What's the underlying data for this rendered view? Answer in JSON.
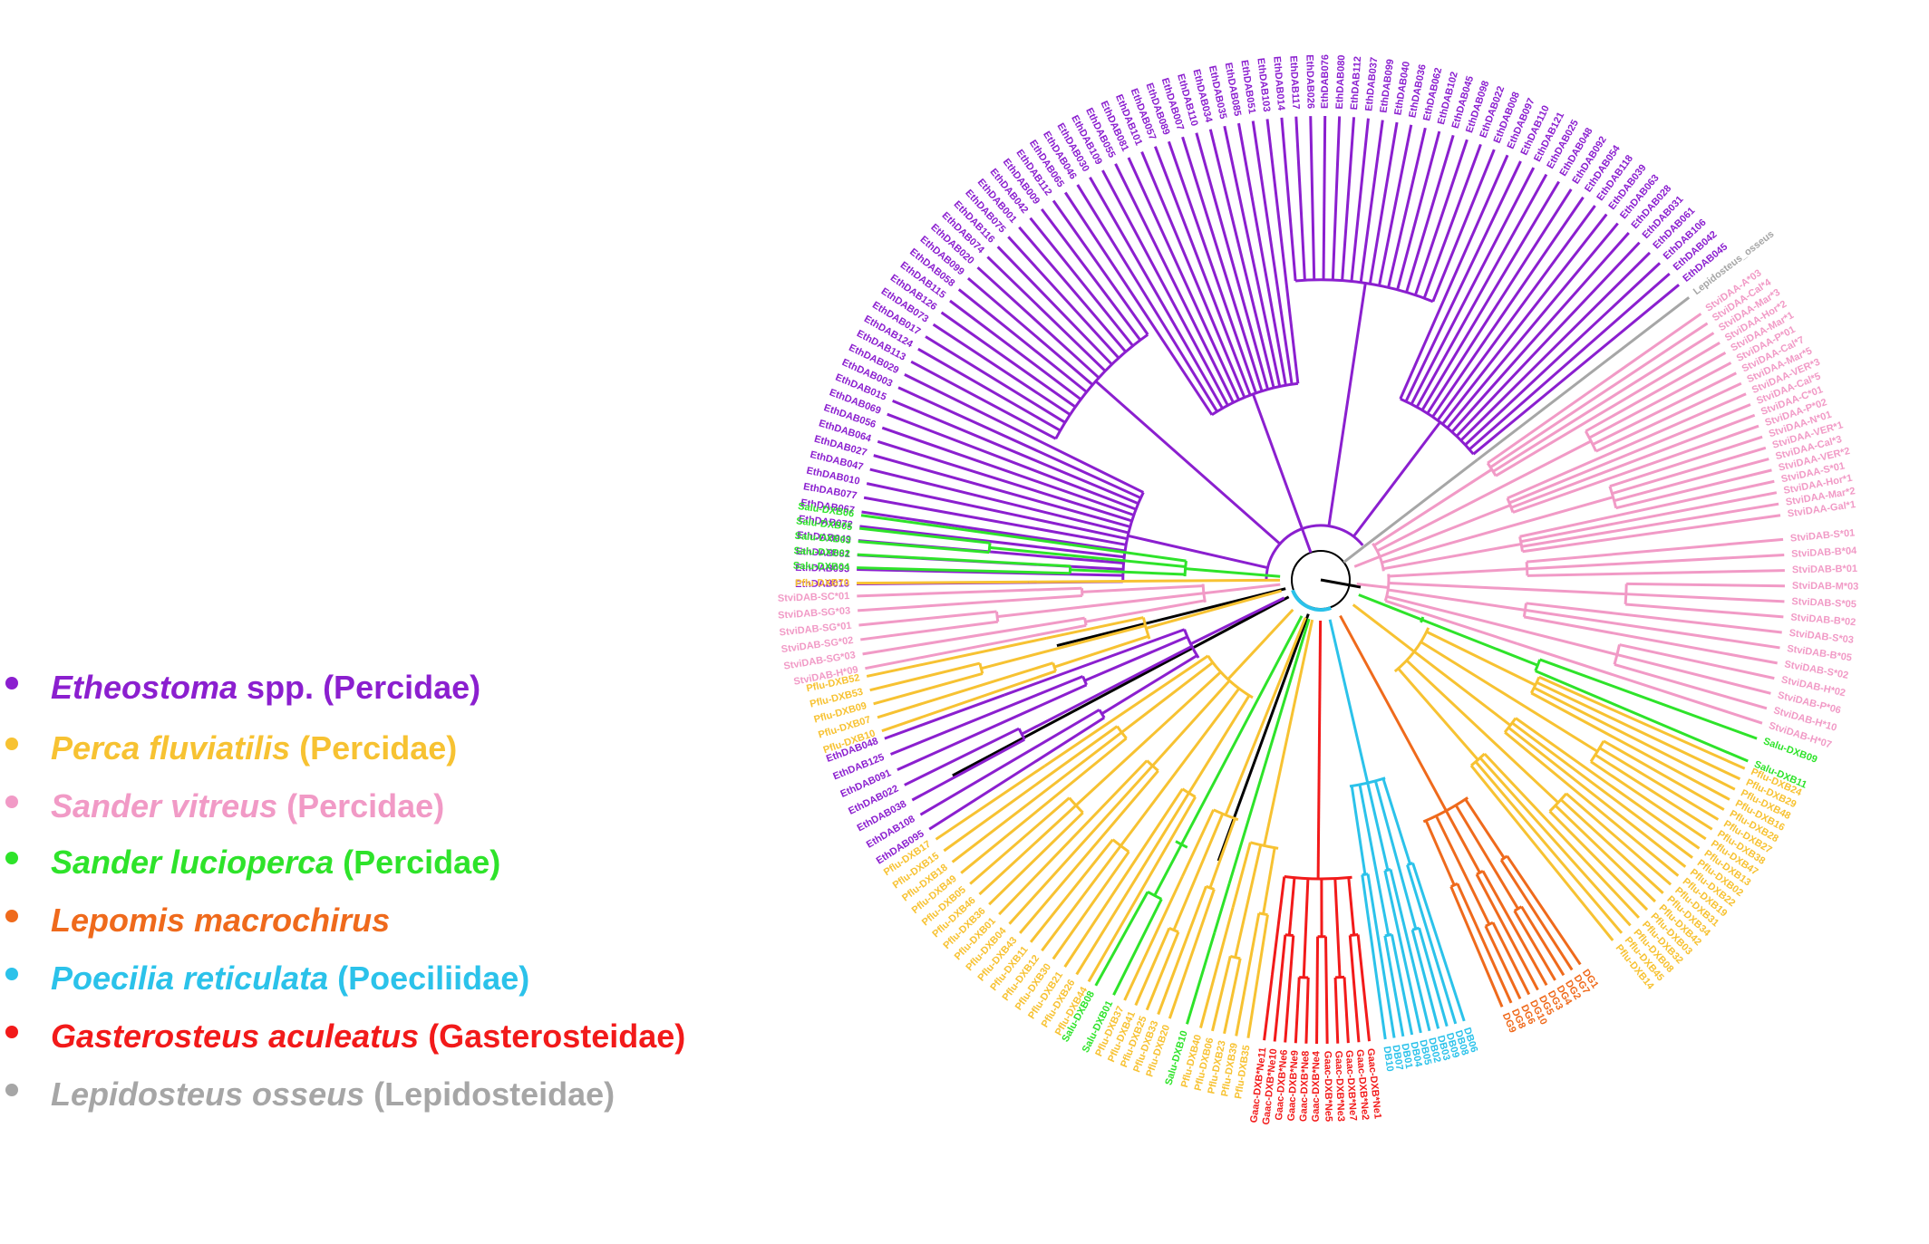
{
  "legend": [
    {
      "species": "Etheostoma",
      "rest": " spp.",
      "family": " (Percidae)",
      "color": "#8b1fcf"
    },
    {
      "species": "Perca fluviatilis",
      "rest": "",
      "family": " (Percidae)",
      "color": "#f7c232"
    },
    {
      "species": "Sander vitreus",
      "rest": "",
      "family": " (Percidae)",
      "color": "#f19ac6"
    },
    {
      "species": "Sander lucioperca",
      "rest": "",
      "family": " (Percidae)",
      "color": "#2ee32a"
    },
    {
      "species": "Lepomis macrochirus",
      "rest": "",
      "family": "",
      "color": "#ef6a1c"
    },
    {
      "species": "Poecilia reticulata",
      "rest": "",
      "family": " (Poeciliidae)",
      "color": "#2bc2ea"
    },
    {
      "species": "Gasterosteus aculeatus",
      "rest": "",
      "family": " (Gasterosteidae)",
      "color": "#f21a1a"
    },
    {
      "species": "Lepidosteus osseus",
      "rest": "",
      "family": " (Lepidosteidae)",
      "color": "#a6a6a6"
    }
  ],
  "tree": {
    "root_color": "#000000",
    "clades": [
      {
        "group": "Etheostoma",
        "color": "#8b1fcf",
        "labels": [
          "EthDAB013",
          "EthDAB093",
          "EthDAB081",
          "EthDAB049",
          "EthDAB072",
          "EthDAB067",
          "EthDAB077",
          "EthDAB010",
          "EthDAB047",
          "EthDAB027",
          "EthDAB064",
          "EthDAB056",
          "EthDAB069",
          "EthDAB015",
          "EthDAB003",
          "EthDAB029",
          "EthDAB113",
          "EthDAB124",
          "EthDAB017",
          "EthDAB073",
          "EthDAB126",
          "EthDAB115",
          "EthDAB058",
          "EthDAB099",
          "EthDAB020",
          "EthDAB074",
          "EthDAB116",
          "EthDAB075",
          "EthDAB001",
          "EthDAB042",
          "EthDAB009",
          "EthDAB112",
          "EthDAB065",
          "EthDAB046",
          "EthDAB030",
          "EthDAB109",
          "EthDAB055",
          "EthDAB081",
          "EthDAB101",
          "EthDAB057",
          "EthDAB089",
          "EthDAB007",
          "EthDAB110",
          "EthDAB034",
          "EthDAB035",
          "EthDAB085",
          "EthDAB051",
          "EthDAB103",
          "EthDAB014",
          "EthDAB117",
          "EthDAB026",
          "EthDAB076",
          "EthDAB080",
          "EthDAB112",
          "EthDAB037",
          "EthDAB099",
          "EthDAB040",
          "EthDAB036",
          "EthDAB062",
          "EthDAB102",
          "EthDAB045",
          "EthDAB098",
          "EthDAB022",
          "EthDAB008",
          "EthDAB097",
          "EthDAB110",
          "EthDAB121",
          "EthDAB025",
          "EthDAB048",
          "EthDAB092",
          "EthDAB054",
          "EthDAB118",
          "EthDAB039",
          "EthDAB063",
          "EthDAB028",
          "EthDAB031",
          "EthDAB061",
          "EthDAB106",
          "EthDAB042",
          "EthDAB045"
        ]
      },
      {
        "group": "Lepidosteus",
        "color": "#a6a6a6",
        "labels": [
          "Lepidosteus_osseus"
        ]
      },
      {
        "group": "Sander vitreus DAA",
        "color": "#f19ac6",
        "labels": [
          "StviDAA-A*03",
          "StviDAA-Cal*4",
          "StviDAA-Mar*3",
          "StviDAA-Hor*2",
          "StviDAA-Mar*1",
          "StviDAA-P*01",
          "StviDAA-Cal*7",
          "StviDAA-Mar*5",
          "StviDAA-VER*3",
          "StviDAA-Cal*5",
          "StviDAA-C*01",
          "StviDAA-P*02",
          "StviDAA-N*01",
          "StviDAA-VER*1",
          "StviDAA-Cal*3",
          "StviDAA-VER*2",
          "StviDAA-S*01",
          "StviDAA-Hor*1",
          "StviDAA-Mar*2",
          "StviDAA-Gal*1"
        ]
      },
      {
        "group": "Sander vitreus DAB",
        "color": "#f19ac6",
        "labels": [
          "StviDAB-S*01",
          "StviDAB-B*04",
          "StviDAB-B*01",
          "StviDAB-M*03",
          "StviDAB-S*05",
          "StviDAB-B*02",
          "StviDAB-S*03",
          "StviDAB-B*05",
          "StviDAB-S*02",
          "StviDAB-H*02",
          "StviDAB-P*06",
          "StviDAB-H*10",
          "StviDAB-H*07"
        ]
      },
      {
        "group": "Sander lucioperca (right)",
        "color": "#2ee32a",
        "labels": [
          "Salu-DXB09",
          "Salu-DXB11"
        ]
      },
      {
        "group": "Perca fluviatilis (right)",
        "color": "#f7c232",
        "labels": [
          "Pflu-DXB24",
          "Pflu-DXB29",
          "Pflu-DXB48",
          "Pflu-DXB16",
          "Pflu-DXB28",
          "Pflu-DXB27",
          "Pflu-DXB38",
          "Pflu-DXB47",
          "Pflu-DXB13",
          "Pflu-DXB02",
          "Pflu-DXB22",
          "Pflu-DXB19",
          "Pflu-DXB31",
          "Pflu-DXB34",
          "Pflu-DXB42",
          "Pflu-DXB03",
          "Pflu-DXB32",
          "Pflu-DXB08",
          "Pflu-DXB45",
          "Pflu-DXB14"
        ]
      },
      {
        "group": "Lepomis",
        "color": "#ef6a1c",
        "labels": [
          "DG1",
          "DG7",
          "DG2",
          "DG4",
          "DG3",
          "DG5",
          "DG10",
          "DG6",
          "DG8",
          "DG9"
        ]
      },
      {
        "group": "Poecilia",
        "color": "#2bc2ea",
        "labels": [
          "DB06",
          "DB08",
          "DB09",
          "DB03",
          "DB02",
          "DB05",
          "DB04",
          "DB01",
          "DB07",
          "DB10"
        ]
      },
      {
        "group": "Gasterosteus",
        "color": "#f21a1a",
        "labels": [
          "Gaac-DXB*Ne1",
          "Gaac-DXB*Ne2",
          "Gaac-DXB*Ne7",
          "Gaac-DXB*Ne3",
          "Gaac-DXB*Ne5",
          "Gaac-DXB*Ne4",
          "Gaac-DXB*Ne8",
          "Gaac-DXB*Ne9",
          "Gaac-DXB*Ne6",
          "Gaac-DXB*Ne10",
          "Gaac-DXB*Ne11"
        ]
      },
      {
        "group": "Perca fluviatilis (bottom)",
        "color": "#f7c232",
        "labels": [
          "Pflu-DXB35",
          "Pflu-DXB39",
          "Pflu-DXB23",
          "Pflu-DXB06",
          "Pflu-DXB40"
        ]
      },
      {
        "group": "Sander lucioperca (bottom)",
        "color": "#2ee32a",
        "labels": [
          "Salu-DXB10"
        ]
      },
      {
        "group": "Perca fluviatilis (bottom 2)",
        "color": "#f7c232",
        "labels": [
          "Pflu-DXB20",
          "Pflu-DXB33",
          "Pflu-DXB25",
          "Pflu-DXB41",
          "Pflu-DXB37"
        ]
      },
      {
        "group": "Sander lucioperca (bottom 2)",
        "color": "#2ee32a",
        "labels": [
          "Salu-DXB01",
          "Salu-DXB08"
        ]
      },
      {
        "group": "Perca fluviatilis (left-bottom)",
        "color": "#f7c232",
        "labels": [
          "Pflu-DXB44",
          "Pflu-DXB26",
          "Pflu-DXB21",
          "Pflu-DXB30",
          "Pflu-DXB12",
          "Pflu-DXB11",
          "Pflu-DXB43",
          "Pflu-DXB04",
          "Pflu-DXB01",
          "Pflu-DXB36",
          "Pflu-DXB46",
          "Pflu-DXB05",
          "Pflu-DXB49",
          "Pflu-DXB18",
          "Pflu-DXB15",
          "Pflu-DXB17"
        ]
      },
      {
        "group": "Etheostoma (left)",
        "color": "#8b1fcf",
        "labels": [
          "EthDAB095",
          "EthDAB108",
          "EthDAB038",
          "EthDAB022",
          "EthDAB091",
          "EthDAB125",
          "EthDAB048"
        ]
      },
      {
        "group": "Perca fluviatilis (left)",
        "color": "#f7c232",
        "labels": [
          "Pflu-DXB10",
          "Pflu-DXB07",
          "Pflu-DXB09",
          "Pflu-DXB53",
          "Pflu-DXB52"
        ]
      },
      {
        "group": "Sander vitreus DXB (left)",
        "color": "#f19ac6",
        "labels": [
          "StviDAB-H*09",
          "StviDAB-SG*03",
          "StviDAB-SG*02",
          "StviDAB-SG*01",
          "StviDAB-SG*03",
          "StviDAB-SC*01"
        ]
      },
      {
        "group": "Perca fluviatilis (left top)",
        "color": "#f7c232",
        "labels": [
          "Pflu-DXB70"
        ]
      },
      {
        "group": "Sander lucioperca (left)",
        "color": "#2ee32a",
        "labels": [
          "Salu-DXB04",
          "Salu-DXB02",
          "Salu-DXB03",
          "Salu-DXB05",
          "Salu-DXB06"
        ]
      }
    ]
  }
}
